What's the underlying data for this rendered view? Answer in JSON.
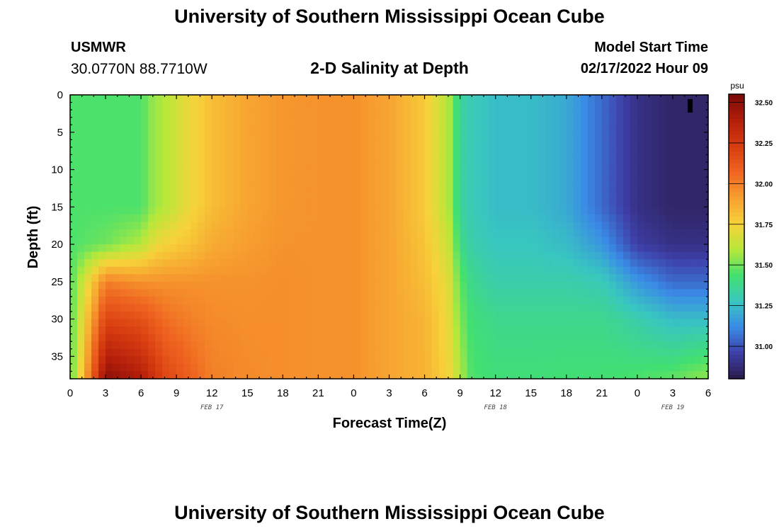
{
  "header": {
    "title": "University of Southern Mississippi Ocean Cube",
    "station": "USMWR",
    "coordinates": "30.0770N  88.7710W",
    "subtitle": "2-D Salinity at Depth",
    "model_start_label": "Model Start Time",
    "model_start_value": "02/17/2022 Hour 09"
  },
  "footer": {
    "title": "University of Southern Mississippi Ocean Cube"
  },
  "colors": {
    "frame": "#000000",
    "palette": [
      "#2a1a4a",
      "#3e3fa8",
      "#3a8ae6",
      "#38c6c0",
      "#42e070",
      "#b6e83a",
      "#f7d23a",
      "#f7a030",
      "#ef6420",
      "#d83d10",
      "#b31e0a",
      "#7a0a08"
    ]
  },
  "chart_data": {
    "type": "heatmap",
    "xlabel": "Forecast Time(Z)",
    "ylabel": "Depth (ft)",
    "x_tick_labels": [
      "0",
      "3",
      "6",
      "9",
      "12",
      "15",
      "18",
      "21",
      "0",
      "3",
      "6",
      "9",
      "12",
      "15",
      "18",
      "21",
      "0",
      "3",
      "6"
    ],
    "y_tick_labels": [
      "0",
      "5",
      "10",
      "15",
      "20",
      "25",
      "30",
      "35"
    ],
    "y_ticks": [
      0,
      5,
      10,
      15,
      20,
      25,
      30,
      35
    ],
    "ylim": [
      38,
      0
    ],
    "x_range_hours": [
      0,
      54
    ],
    "date_labels": [
      {
        "text": "FEB 17",
        "hour": 12
      },
      {
        "text": "FEB 18",
        "hour": 36
      },
      {
        "text": "FEB 19",
        "hour": 51
      }
    ],
    "colorbar": {
      "unit": "psu",
      "min": 30.8,
      "max": 32.55,
      "tick_labels": [
        "32.50",
        "32.25",
        "32.00",
        "31.75",
        "31.50",
        "31.25",
        "31.00"
      ],
      "ticks": [
        32.5,
        32.25,
        32.0,
        31.75,
        31.5,
        31.25,
        31.0
      ]
    },
    "salinity_psu": {
      "hours": [
        0,
        3,
        6,
        7,
        8,
        10,
        12,
        15,
        18,
        21,
        24,
        27,
        30,
        32,
        33,
        34,
        36,
        39,
        42,
        45,
        48,
        51,
        54
      ],
      "depths_ft": [
        0,
        15,
        20,
        25,
        30,
        38
      ],
      "values": [
        [
          31.45,
          31.45,
          31.45,
          31.45,
          31.45,
          31.45
        ],
        [
          31.45,
          31.45,
          31.5,
          32.0,
          32.2,
          32.5
        ],
        [
          31.45,
          31.45,
          31.6,
          31.95,
          32.15,
          32.4
        ],
        [
          31.55,
          31.55,
          31.7,
          31.95,
          32.1,
          32.3
        ],
        [
          31.6,
          31.6,
          31.75,
          31.95,
          32.05,
          32.2
        ],
        [
          31.72,
          31.72,
          31.8,
          31.95,
          32.0,
          32.1
        ],
        [
          31.82,
          31.82,
          31.88,
          31.95,
          31.97,
          32.0
        ],
        [
          31.9,
          31.9,
          31.92,
          31.95,
          31.96,
          31.97
        ],
        [
          31.94,
          31.94,
          31.95,
          31.96,
          31.96,
          31.96
        ],
        [
          31.95,
          31.95,
          31.95,
          31.95,
          31.95,
          31.95
        ],
        [
          31.95,
          31.95,
          31.95,
          31.95,
          31.95,
          31.95
        ],
        [
          31.9,
          31.9,
          31.9,
          31.9,
          31.9,
          31.9
        ],
        [
          31.78,
          31.78,
          31.8,
          31.82,
          31.85,
          31.85
        ],
        [
          31.6,
          31.6,
          31.65,
          31.7,
          31.72,
          31.75
        ],
        [
          31.35,
          31.35,
          31.4,
          31.48,
          31.52,
          31.6
        ],
        [
          31.3,
          31.3,
          31.32,
          31.38,
          31.42,
          31.45
        ],
        [
          31.25,
          31.25,
          31.28,
          31.32,
          31.38,
          31.42
        ],
        [
          31.25,
          31.25,
          31.28,
          31.32,
          31.38,
          31.42
        ],
        [
          31.2,
          31.2,
          31.25,
          31.32,
          31.38,
          31.43
        ],
        [
          31.05,
          31.05,
          31.15,
          31.3,
          31.38,
          31.43
        ],
        [
          30.9,
          30.9,
          30.95,
          31.15,
          31.32,
          31.45
        ],
        [
          30.85,
          30.85,
          30.9,
          31.05,
          31.25,
          31.48
        ],
        [
          30.85,
          30.85,
          30.9,
          31.05,
          31.25,
          31.55
        ]
      ]
    }
  }
}
